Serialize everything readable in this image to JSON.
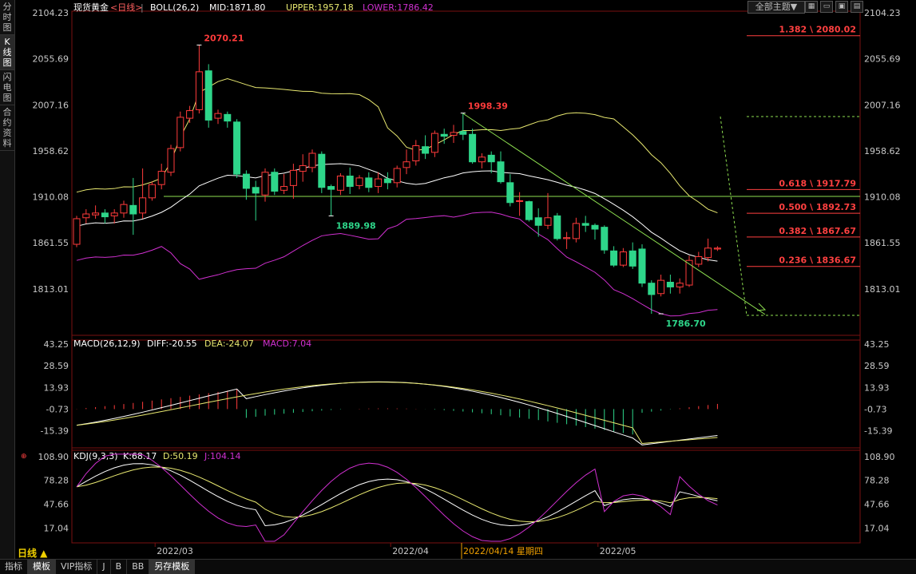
{
  "side_tabs": [
    {
      "label": "分时图",
      "active": false
    },
    {
      "label": "K线图",
      "active": true
    },
    {
      "label": "闪电图",
      "active": false
    },
    {
      "label": "合约资料",
      "active": false
    }
  ],
  "theme_button": "全部主题▼",
  "period_label": "日线 ▲",
  "bottom_tabs": [
    {
      "label": "指标",
      "active": false
    },
    {
      "label": "模板",
      "active": true
    },
    {
      "label": "VIP指标",
      "active": false
    },
    {
      "label": "J",
      "active": false
    },
    {
      "label": "B",
      "active": false
    },
    {
      "label": "BB",
      "active": false
    },
    {
      "label": "另存模板",
      "active": true
    }
  ],
  "colors": {
    "up": "#ff3b3b",
    "down": "#2ed68a",
    "mid": "#ffffff",
    "upper": "#e8e870",
    "lower": "#d030d0",
    "fib": "#ff4040",
    "trend": "#8ee050"
  },
  "chart_data": {
    "type": "candlestick",
    "instrument": "现货黄金",
    "period": "<日线>",
    "boll_header": {
      "name": "BOLL(26,2)",
      "mid": "MID:1871.80",
      "upper": "UPPER:1957.18",
      "lower": "LOWER:1786.42"
    },
    "price_axis": {
      "ticks": [
        "2104.23",
        "2055.69",
        "2007.16",
        "1958.62",
        "1910.08",
        "1861.55",
        "1813.01"
      ],
      "range": [
        1764,
        2104.23
      ]
    },
    "date_ticks": [
      {
        "label": "2022/03",
        "index": 9
      },
      {
        "label": "2022/04",
        "index": 34
      },
      {
        "label": "2022/05",
        "index": 56
      }
    ],
    "cursor_date": "2022/04/14 星期四",
    "annotations": [
      {
        "text": "2070.21",
        "index": 13,
        "price": 2070.21,
        "color": "up"
      },
      {
        "text": "1998.39",
        "index": 41,
        "price": 1998.39,
        "color": "up"
      },
      {
        "text": "1889.98",
        "index": 27,
        "price": 1889.98,
        "color": "down"
      },
      {
        "text": "1786.70",
        "index": 62,
        "price": 1786.7,
        "color": "down"
      }
    ],
    "fib_levels": [
      {
        "label": "1.382 \\ 2080.02",
        "price": 2080.02
      },
      {
        "label": "0.618 \\ 1917.79",
        "price": 1917.79
      },
      {
        "label": "0.500 \\ 1892.73",
        "price": 1892.73
      },
      {
        "label": "0.382 \\ 1867.67",
        "price": 1867.67
      },
      {
        "label": "0.236 \\ 1836.67",
        "price": 1836.67
      }
    ],
    "horizontal_line": 1910.5,
    "candles": [
      [
        1860,
        1887,
        1857,
        1890
      ],
      [
        1888,
        1892,
        1882,
        1897
      ],
      [
        1891,
        1893,
        1887,
        1901
      ],
      [
        1893,
        1889,
        1882,
        1897
      ],
      [
        1890,
        1893,
        1882,
        1897
      ],
      [
        1893,
        1902,
        1888,
        1906
      ],
      [
        1901,
        1892,
        1870,
        1930
      ],
      [
        1893,
        1909,
        1887,
        1940
      ],
      [
        1909,
        1923,
        1906,
        1926
      ],
      [
        1923,
        1937,
        1918,
        1945
      ],
      [
        1936,
        1961,
        1932,
        1965
      ],
      [
        1962,
        1994,
        1958,
        2000
      ],
      [
        1993,
        2001,
        1988,
        2006
      ],
      [
        2002,
        2042,
        1998,
        2070.21
      ],
      [
        2043,
        1991,
        1983,
        2050
      ],
      [
        1993,
        1998,
        1987,
        2002
      ],
      [
        1997,
        1990,
        1983,
        2000
      ],
      [
        1989,
        1934,
        1930,
        1992
      ],
      [
        1934,
        1919,
        1907,
        1938
      ],
      [
        1920,
        1914,
        1885,
        1927
      ],
      [
        1912,
        1936,
        1905,
        1940
      ],
      [
        1936,
        1916,
        1912,
        1940
      ],
      [
        1917,
        1921,
        1913,
        1934
      ],
      [
        1922,
        1938,
        1908,
        1945
      ],
      [
        1937,
        1943,
        1926,
        1955
      ],
      [
        1941,
        1956,
        1936,
        1960
      ],
      [
        1955,
        1920,
        1914,
        1958
      ],
      [
        1921,
        1918,
        1889.98,
        1923
      ],
      [
        1917,
        1932,
        1912,
        1935
      ],
      [
        1932,
        1921,
        1913,
        1941
      ],
      [
        1922,
        1930,
        1918,
        1933
      ],
      [
        1930,
        1920,
        1915,
        1936
      ],
      [
        1921,
        1929,
        1914,
        1936
      ],
      [
        1929,
        1925,
        1918,
        1936
      ],
      [
        1925,
        1940,
        1920,
        1943
      ],
      [
        1941,
        1947,
        1934,
        1960
      ],
      [
        1948,
        1964,
        1943,
        1970
      ],
      [
        1963,
        1956,
        1950,
        1975
      ],
      [
        1957,
        1977,
        1952,
        1980
      ],
      [
        1976,
        1974,
        1966,
        1982
      ],
      [
        1975,
        1978,
        1967,
        1986
      ],
      [
        1979,
        1976,
        1970,
        1998.39
      ],
      [
        1976,
        1947,
        1945,
        1982
      ],
      [
        1947,
        1952,
        1940,
        1956
      ],
      [
        1954,
        1947,
        1935,
        1958
      ],
      [
        1947,
        1926,
        1924,
        1958
      ],
      [
        1925,
        1904,
        1900,
        1934
      ],
      [
        1906,
        1906,
        1890,
        1915
      ],
      [
        1905,
        1886,
        1884,
        1906
      ],
      [
        1888,
        1880,
        1868,
        1898
      ],
      [
        1880,
        1888,
        1876,
        1914
      ],
      [
        1890,
        1866,
        1864,
        1893
      ],
      [
        1866,
        1867,
        1855,
        1873
      ],
      [
        1866,
        1882,
        1862,
        1888
      ],
      [
        1882,
        1880,
        1873,
        1890
      ],
      [
        1880,
        1876,
        1865,
        1882
      ],
      [
        1878,
        1854,
        1850,
        1880
      ],
      [
        1853,
        1838,
        1836,
        1858
      ],
      [
        1838,
        1852,
        1836,
        1856
      ],
      [
        1853,
        1837,
        1834,
        1862
      ],
      [
        1855,
        1819,
        1815,
        1860
      ],
      [
        1819,
        1807,
        1786.7,
        1822
      ],
      [
        1808,
        1822,
        1805,
        1828
      ],
      [
        1820,
        1815,
        1808,
        1828
      ],
      [
        1815,
        1819,
        1808,
        1824
      ],
      [
        1817,
        1843,
        1815,
        1848
      ],
      [
        1839,
        1847,
        1836,
        1852
      ],
      [
        1846,
        1856,
        1842,
        1866
      ],
      [
        1855,
        1856,
        1853,
        1858
      ]
    ],
    "macd": {
      "header": {
        "name": "MACD(26,12,9)",
        "diff": "DIFF:-20.55",
        "dea": "DEA:-24.07",
        "macd": "MACD:7.04"
      },
      "ticks": [
        "43.25",
        "28.59",
        "13.93",
        "-0.73",
        "-15.39"
      ],
      "range": [
        -27,
        46
      ]
    },
    "kdj": {
      "header": {
        "name": "KDJ(9,3,3)",
        "k": "K:68.17",
        "d": "D:50.19",
        "j": "J:104.14"
      },
      "ticks": [
        "108.90",
        "78.28",
        "47.66",
        "17.04"
      ],
      "range": [
        -2,
        117
      ]
    }
  }
}
